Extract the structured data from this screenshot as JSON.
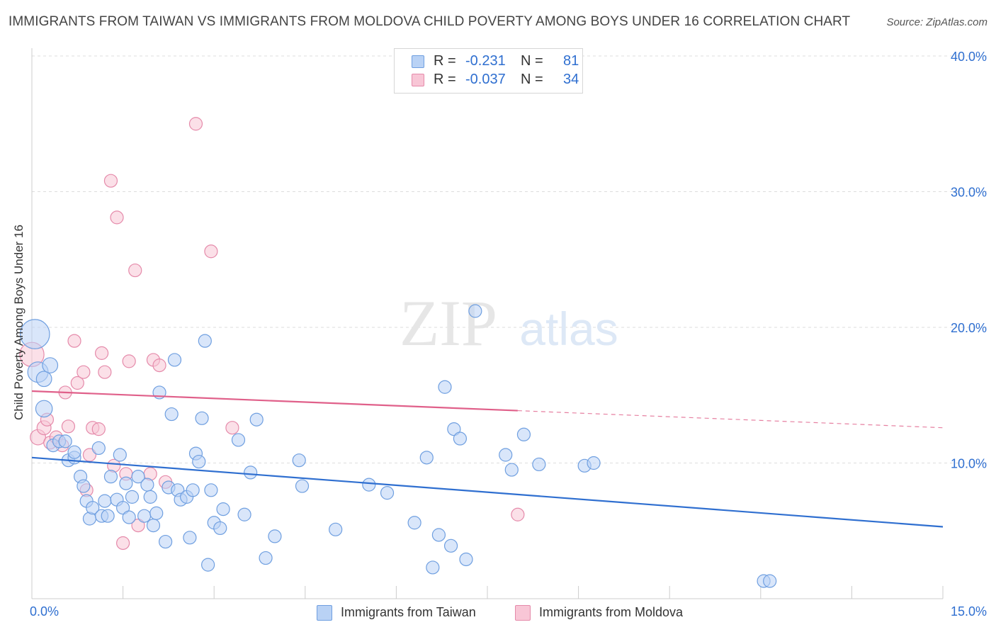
{
  "header": {
    "title": "IMMIGRANTS FROM TAIWAN VS IMMIGRANTS FROM MOLDOVA CHILD POVERTY AMONG BOYS UNDER 16 CORRELATION CHART",
    "source": "Source: ZipAtlas.com"
  },
  "watermark": {
    "zip": "ZIP",
    "atlas": "atlas"
  },
  "stats": {
    "taiwan": {
      "r_label": "R =",
      "r_value": "-0.231",
      "n_label": "N =",
      "n_value": "81"
    },
    "moldova": {
      "r_label": "R =",
      "r_value": "-0.037",
      "n_label": "N =",
      "n_value": "34"
    }
  },
  "legend": {
    "taiwan": "Immigrants from Taiwan",
    "moldova": "Immigrants from Moldova"
  },
  "colors": {
    "taiwan_fill": "#b9d2f5",
    "taiwan_stroke": "#6f9fe0",
    "taiwan_line": "#2f6fd0",
    "moldova_fill": "#f8c6d6",
    "moldova_stroke": "#e58aaa",
    "moldova_line": "#e0608a",
    "tick_label": "#2f6fd0"
  },
  "chart_data": {
    "type": "scatter",
    "title": "IMMIGRANTS FROM TAIWAN VS IMMIGRANTS FROM MOLDOVA CHILD POVERTY AMONG BOYS UNDER 16 CORRELATION CHART",
    "xlabel": "",
    "ylabel": "Child Poverty Among Boys Under 16",
    "xlim": [
      0,
      15
    ],
    "ylim": [
      0,
      40
    ],
    "x_tick_labels": [
      "0.0%",
      "15.0%"
    ],
    "y_ticks": [
      10,
      20,
      30,
      40
    ],
    "y_tick_labels": [
      "10.0%",
      "20.0%",
      "30.0%",
      "40.0%"
    ],
    "grid": true,
    "legend_position": "bottom",
    "series": [
      {
        "name": "Immigrants from Taiwan",
        "r": -0.231,
        "n": 81,
        "trend": {
          "x": [
            0,
            15
          ],
          "y": [
            10.4,
            5.3
          ]
        },
        "points": [
          [
            0.05,
            19.5,
            2.3
          ],
          [
            0.1,
            16.7,
            1.6
          ],
          [
            0.2,
            16.2,
            1.2
          ],
          [
            0.3,
            17.2,
            1.2
          ],
          [
            0.2,
            14.0,
            1.3
          ],
          [
            0.35,
            11.3,
            1.0
          ],
          [
            0.45,
            11.6,
            1.0
          ],
          [
            0.55,
            11.6,
            1.0
          ],
          [
            0.6,
            10.2,
            1.0
          ],
          [
            0.7,
            10.4,
            1.0
          ],
          [
            0.7,
            10.8,
            1.0
          ],
          [
            0.8,
            9.0,
            1.0
          ],
          [
            0.85,
            8.3,
            1.0
          ],
          [
            0.9,
            7.2,
            1.0
          ],
          [
            0.95,
            5.9,
            1.0
          ],
          [
            1.0,
            6.7,
            1.0
          ],
          [
            1.1,
            11.1,
            1.0
          ],
          [
            1.15,
            6.1,
            1.0
          ],
          [
            1.2,
            7.2,
            1.0
          ],
          [
            1.25,
            6.1,
            1.0
          ],
          [
            1.3,
            9.0,
            1.0
          ],
          [
            1.4,
            7.3,
            1.0
          ],
          [
            1.45,
            10.6,
            1.0
          ],
          [
            1.5,
            6.7,
            1.0
          ],
          [
            1.55,
            8.5,
            1.0
          ],
          [
            1.6,
            6.0,
            1.0
          ],
          [
            1.65,
            7.5,
            1.0
          ],
          [
            1.75,
            9.0,
            1.0
          ],
          [
            1.85,
            6.1,
            1.0
          ],
          [
            1.9,
            8.4,
            1.0
          ],
          [
            1.95,
            7.5,
            1.0
          ],
          [
            2.0,
            5.4,
            1.0
          ],
          [
            2.05,
            6.3,
            1.0
          ],
          [
            2.1,
            15.2,
            1.0
          ],
          [
            2.2,
            4.2,
            1.0
          ],
          [
            2.25,
            8.2,
            1.0
          ],
          [
            2.3,
            13.6,
            1.0
          ],
          [
            2.35,
            17.6,
            1.0
          ],
          [
            2.4,
            8.0,
            1.0
          ],
          [
            2.45,
            7.3,
            1.0
          ],
          [
            2.55,
            7.5,
            1.0
          ],
          [
            2.6,
            4.5,
            1.0
          ],
          [
            2.65,
            8.0,
            1.0
          ],
          [
            2.7,
            10.7,
            1.0
          ],
          [
            2.75,
            10.1,
            1.0
          ],
          [
            2.8,
            13.3,
            1.0
          ],
          [
            2.85,
            19.0,
            1.0
          ],
          [
            2.9,
            2.5,
            1.0
          ],
          [
            2.95,
            8.0,
            1.0
          ],
          [
            3.0,
            5.6,
            1.0
          ],
          [
            3.1,
            5.2,
            1.0
          ],
          [
            3.15,
            6.6,
            1.0
          ],
          [
            3.4,
            11.7,
            1.0
          ],
          [
            3.5,
            6.2,
            1.0
          ],
          [
            3.6,
            9.3,
            1.0
          ],
          [
            3.7,
            13.2,
            1.0
          ],
          [
            3.85,
            3.0,
            1.0
          ],
          [
            4.0,
            4.6,
            1.0
          ],
          [
            4.4,
            10.2,
            1.0
          ],
          [
            4.45,
            8.3,
            1.0
          ],
          [
            5.0,
            5.1,
            1.0
          ],
          [
            5.55,
            8.4,
            1.0
          ],
          [
            5.85,
            7.8,
            1.0
          ],
          [
            6.3,
            5.6,
            1.0
          ],
          [
            6.5,
            10.4,
            1.0
          ],
          [
            6.6,
            2.3,
            1.0
          ],
          [
            6.7,
            4.7,
            1.0
          ],
          [
            6.8,
            15.6,
            1.0
          ],
          [
            6.95,
            12.5,
            1.0
          ],
          [
            7.05,
            11.8,
            1.0
          ],
          [
            6.9,
            3.9,
            1.0
          ],
          [
            7.15,
            2.9,
            1.0
          ],
          [
            7.3,
            21.2,
            1.0
          ],
          [
            7.8,
            10.6,
            1.0
          ],
          [
            7.9,
            9.5,
            1.0
          ],
          [
            8.1,
            12.1,
            1.0
          ],
          [
            8.35,
            9.9,
            1.0
          ],
          [
            9.1,
            9.8,
            1.0
          ],
          [
            9.25,
            10.0,
            1.0
          ],
          [
            12.05,
            1.3,
            1.0
          ],
          [
            12.15,
            1.3,
            1.0
          ]
        ]
      },
      {
        "name": "Immigrants from Moldova",
        "r": -0.037,
        "n": 34,
        "trend": {
          "x": [
            0,
            15
          ],
          "y": [
            15.3,
            12.6
          ]
        },
        "trend_solid_until_x": 8.0,
        "points": [
          [
            0.0,
            18.0,
            1.9
          ],
          [
            0.1,
            11.9,
            1.2
          ],
          [
            0.2,
            12.6,
            1.1
          ],
          [
            0.25,
            13.2,
            1.0
          ],
          [
            0.3,
            11.5,
            1.0
          ],
          [
            0.4,
            11.9,
            1.0
          ],
          [
            0.5,
            11.3,
            1.0
          ],
          [
            0.55,
            15.2,
            1.0
          ],
          [
            0.6,
            12.7,
            1.0
          ],
          [
            0.7,
            19.0,
            1.0
          ],
          [
            0.75,
            15.9,
            1.0
          ],
          [
            0.85,
            16.7,
            1.0
          ],
          [
            0.9,
            8.0,
            1.0
          ],
          [
            0.95,
            10.6,
            1.0
          ],
          [
            1.0,
            12.6,
            1.0
          ],
          [
            1.1,
            12.5,
            1.0
          ],
          [
            1.15,
            18.1,
            1.0
          ],
          [
            1.2,
            16.7,
            1.0
          ],
          [
            1.3,
            30.8,
            1.0
          ],
          [
            1.35,
            9.8,
            1.0
          ],
          [
            1.4,
            28.1,
            1.0
          ],
          [
            1.5,
            4.1,
            1.0
          ],
          [
            1.55,
            9.2,
            1.0
          ],
          [
            1.6,
            17.5,
            1.0
          ],
          [
            1.7,
            24.2,
            1.0
          ],
          [
            1.75,
            5.4,
            1.0
          ],
          [
            1.95,
            9.2,
            1.0
          ],
          [
            2.0,
            17.6,
            1.0
          ],
          [
            2.1,
            17.2,
            1.0
          ],
          [
            2.2,
            8.6,
            1.0
          ],
          [
            2.7,
            35.0,
            1.0
          ],
          [
            2.95,
            25.6,
            1.0
          ],
          [
            3.3,
            12.6,
            1.0
          ],
          [
            8.0,
            6.2,
            1.0
          ]
        ]
      }
    ]
  }
}
